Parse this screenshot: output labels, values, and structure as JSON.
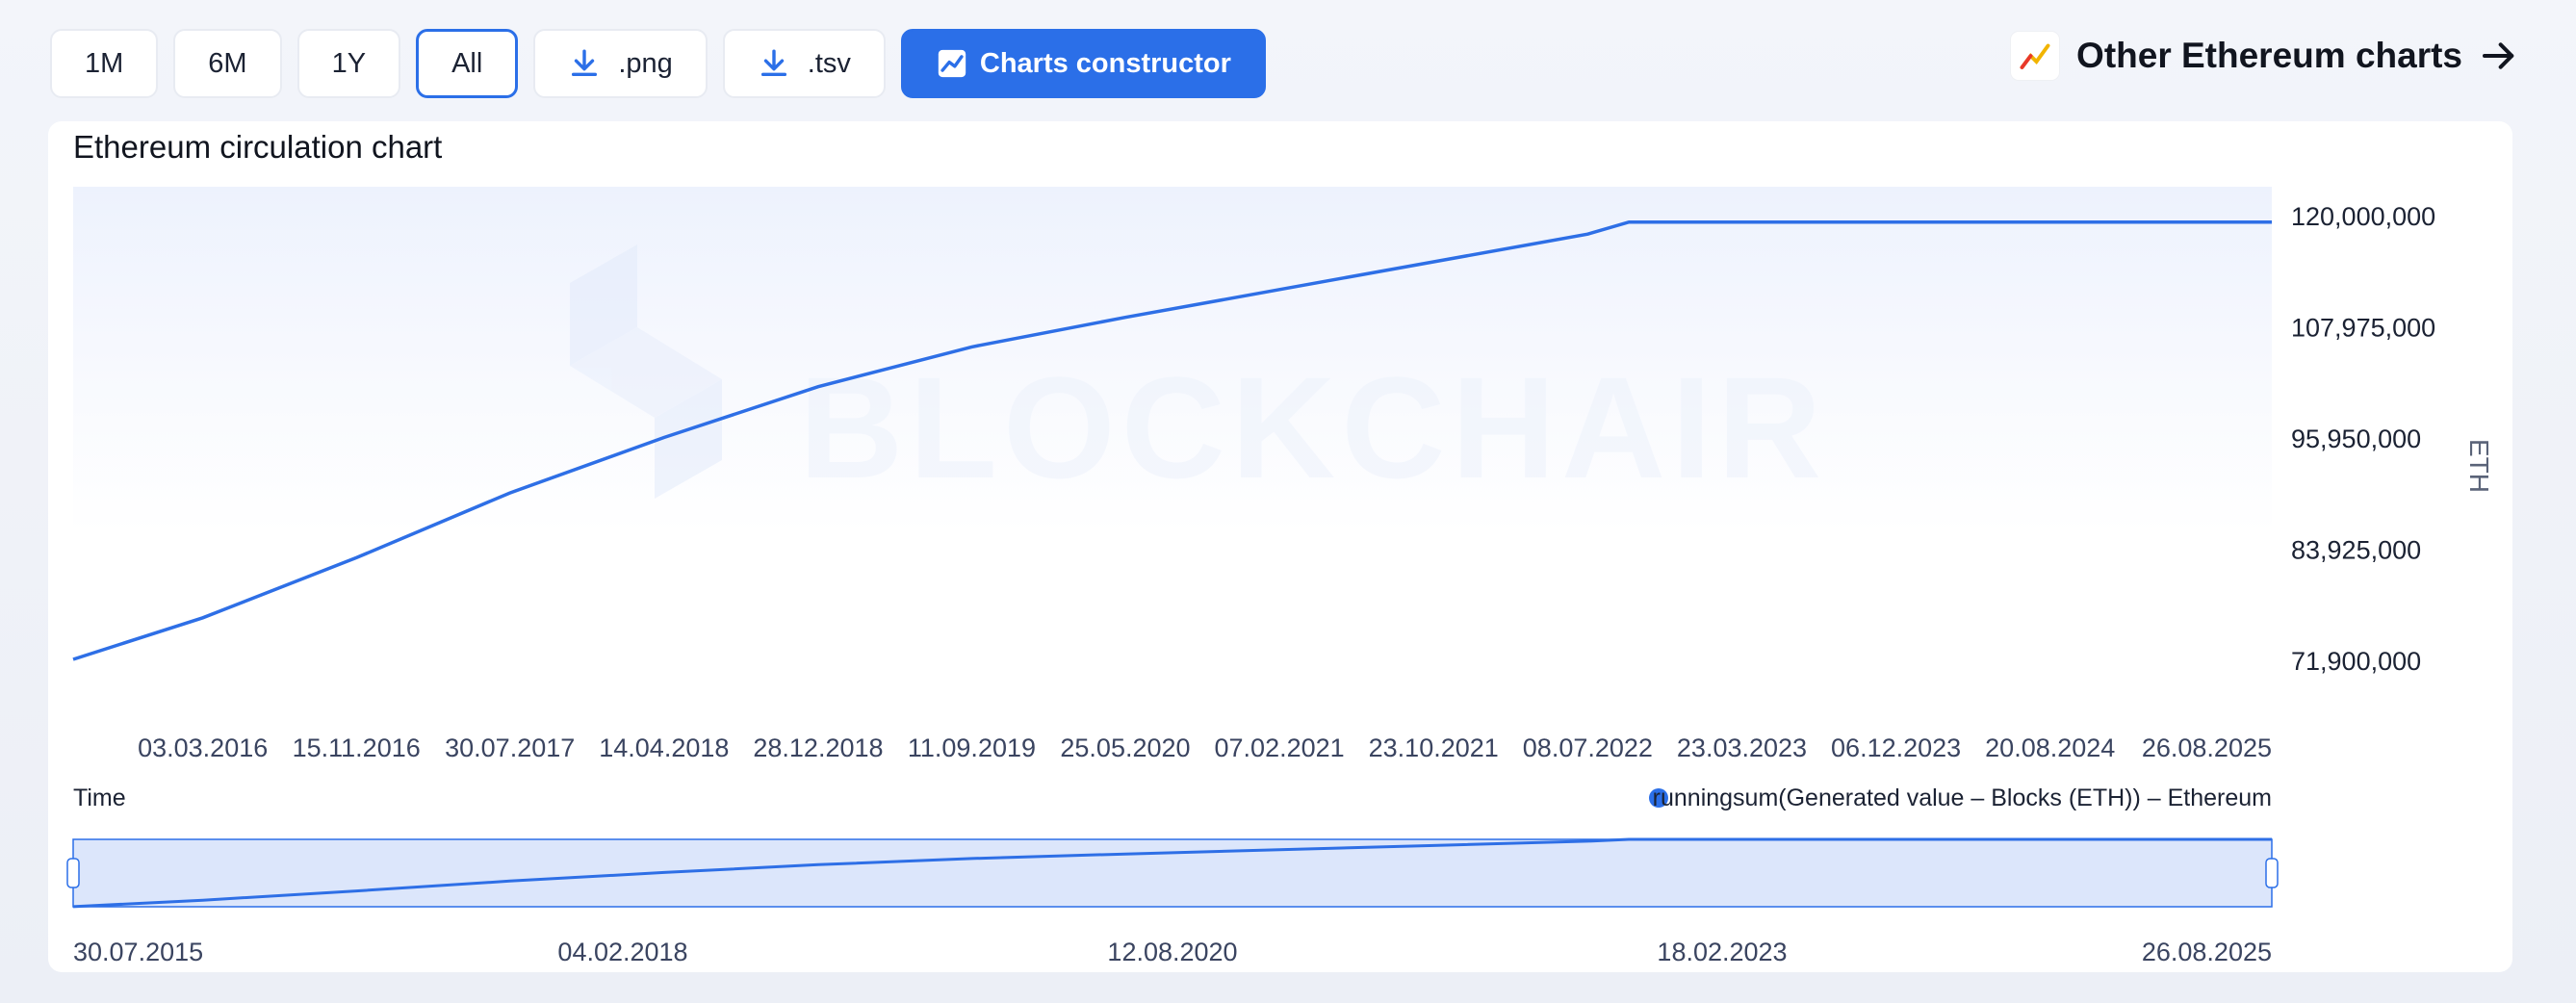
{
  "toolbar": {
    "range_buttons": [
      "1M",
      "6M",
      "1Y",
      "All"
    ],
    "active_range": "All",
    "png_label": ".png",
    "tsv_label": ".tsv",
    "constructor_label": "Charts constructor"
  },
  "other_charts_label": "Other Ethereum charts",
  "colors": {
    "accent": "#2b6fe8",
    "line": "#2e6fe6",
    "nav_fill": "#dce6fb"
  },
  "icons": {
    "download": "download-icon",
    "chart": "chart-icon",
    "arrow": "arrow-right-icon",
    "trend": "trend-icon"
  },
  "chart_data": {
    "type": "area",
    "title": "Ethereum circulation chart",
    "watermark": "BLOCKCHAIR",
    "xlabel": "Time",
    "ylabel": "ETH",
    "yticks": [
      71900000,
      83925000,
      95950000,
      107975000,
      120000000
    ],
    "ytick_labels": [
      "71,900,000",
      "83,925,000",
      "95,950,000",
      "107,975,000",
      "120,000,000"
    ],
    "xtick_labels": [
      "03.03.2016",
      "15.11.2016",
      "30.07.2017",
      "14.04.2018",
      "28.12.2018",
      "11.09.2019",
      "25.05.2020",
      "07.02.2021",
      "23.10.2021",
      "08.07.2022",
      "23.03.2023",
      "06.12.2023",
      "20.08.2024",
      "26.08.2025"
    ],
    "legend": "runningsum(Generated value – Blocks (ETH)) – Ethereum",
    "legend_position": "bottom-right",
    "series": [
      {
        "name": "runningsum(Generated value – Blocks (ETH)) – Ethereum",
        "x": [
          "30.07.2015",
          "03.03.2016",
          "15.11.2016",
          "30.07.2017",
          "14.04.2018",
          "28.12.2018",
          "11.09.2019",
          "25.05.2020",
          "07.02.2021",
          "23.10.2021",
          "08.07.2022",
          "15.09.2022",
          "23.03.2023",
          "06.12.2023",
          "20.08.2024",
          "26.08.2025"
        ],
        "y": [
          72000000,
          76500000,
          83000000,
          90000000,
          96000000,
          101500000,
          105800000,
          109000000,
          112000000,
          115000000,
          118000000,
          119300000,
          119300000,
          119300000,
          119300000,
          119300000
        ]
      }
    ],
    "navigator": {
      "xtick_labels": [
        "30.07.2015",
        "04.02.2018",
        "12.08.2020",
        "18.02.2023",
        "26.08.2025"
      ]
    }
  }
}
